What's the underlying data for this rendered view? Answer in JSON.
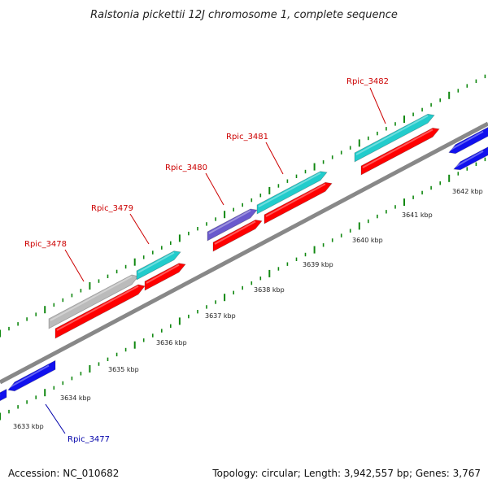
{
  "title": "Ralstonia pickettii 12J chromosome 1, complete sequence",
  "footer": {
    "accession": "Accession: NC_010682",
    "stats": "Topology: circular; Length: 3,942,557 bp; Genes: 3,767"
  },
  "colors": {
    "red": "#ff0000",
    "cyan": "#22cccc",
    "blue": "#1111ee",
    "purple": "#6a5acd",
    "gray": "#bbbbbb",
    "backbone": "#888888",
    "tick": "#118811",
    "label_red": "#cc0000",
    "label_blue": "#0000aa"
  },
  "kbp_labels": [
    "3633 kbp",
    "3634 kbp",
    "3635 kbp",
    "3636 kbp",
    "3637 kbp",
    "3638 kbp",
    "3639 kbp",
    "3640 kbp",
    "3641 kbp",
    "3642 kbp"
  ],
  "gene_labels": [
    {
      "name": "gene-label-rpic-3477",
      "text": "Rpic_3477",
      "color": "label_blue"
    },
    {
      "name": "gene-label-rpic-3478",
      "text": "Rpic_3478",
      "color": "label_red"
    },
    {
      "name": "gene-label-rpic-3479",
      "text": "Rpic_3479",
      "color": "label_red"
    },
    {
      "name": "gene-label-rpic-3480",
      "text": "Rpic_3480",
      "color": "label_red"
    },
    {
      "name": "gene-label-rpic-3481",
      "text": "Rpic_3481",
      "color": "label_red"
    },
    {
      "name": "gene-label-rpic-3482",
      "text": "Rpic_3482",
      "color": "label_red"
    }
  ]
}
